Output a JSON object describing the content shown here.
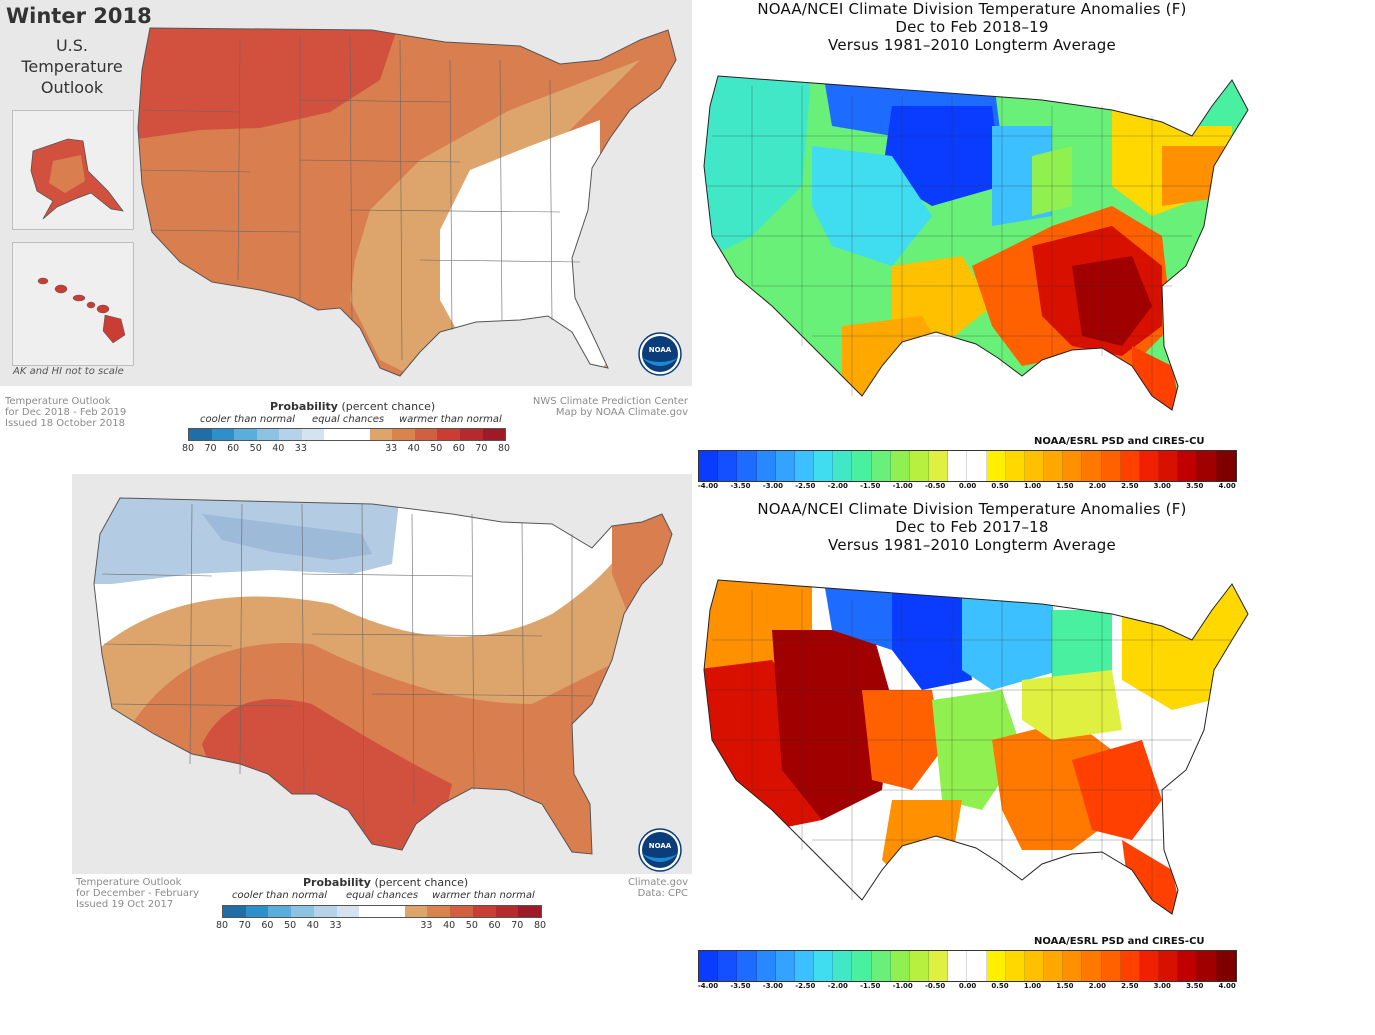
{
  "outlook_2018": {
    "title_line1": "Winter 2018",
    "title_line2": "U.S.",
    "title_line3": "Temperature",
    "title_line4": "Outlook",
    "inset_note": "AK and HI not to scale",
    "footer_left": [
      "Temperature Outlook",
      "for Dec 2018 - Feb 2019",
      "Issued 18 October 2018"
    ],
    "footer_right": [
      "NWS Climate Prediction Center",
      "Map by NOAA Climate.gov"
    ],
    "logo_text": "NOAA"
  },
  "outlook_2017": {
    "footer_left": [
      "Temperature Outlook",
      "for December - February",
      "Issued 19 Oct 2017"
    ],
    "footer_right": [
      "Climate.gov",
      "Data: CPC"
    ],
    "logo_text": "NOAA"
  },
  "probability_legend": {
    "title_bold": "Probability",
    "title_rest": "(percent chance)",
    "cooler": "cooler than normal",
    "equal": "equal chances",
    "warmer": "warmer than normal",
    "ticks": [
      "80",
      "70",
      "60",
      "50",
      "40",
      "33",
      "33",
      "40",
      "50",
      "60",
      "70",
      "80"
    ],
    "colors": [
      "#1f6fa6",
      "#2f8fc8",
      "#5aaedb",
      "#8cc3e3",
      "#b4d2ea",
      "#d5e3f0",
      "#ffffff",
      "#ffffff",
      "#dda56c",
      "#d9844f",
      "#d0603f",
      "#c93d35",
      "#b42a2e",
      "#9e1a26"
    ]
  },
  "anomaly_2018_19": {
    "title_line1": "NOAA/NCEI Climate Division Temperature Anomalies (F)",
    "title_line2": "Dec to Feb 2018–19",
    "title_line3": "Versus 1981–2010 Longterm Average",
    "credit": "NOAA/ESRL PSD and CIRES-CU"
  },
  "anomaly_2017_18": {
    "title_line1": "NOAA/NCEI Climate Division Temperature Anomalies (F)",
    "title_line2": "Dec to Feb 2017–18",
    "title_line3": "Versus 1981–2010 Longterm Average",
    "credit": "NOAA/ESRL PSD and CIRES-CU"
  },
  "anomaly_scale": {
    "ticks": [
      "-4.00",
      "-3.50",
      "-3.00",
      "-2.50",
      "-2.00",
      "-1.50",
      "-1.00",
      "-0.50",
      "0.00",
      "0.50",
      "1.00",
      "1.50",
      "2.00",
      "2.50",
      "3.00",
      "3.50",
      "4.00"
    ],
    "colors": [
      "#0a3cff",
      "#1450ff",
      "#1e6cff",
      "#2888ff",
      "#32a4ff",
      "#3cc0ff",
      "#40dcf0",
      "#40e8c8",
      "#48f0a0",
      "#68f078",
      "#90f050",
      "#b8f040",
      "#e0f040",
      "#ffffff",
      "#ffffff",
      "#fff000",
      "#ffd800",
      "#ffc000",
      "#ffa800",
      "#ff9000",
      "#ff7800",
      "#ff6000",
      "#ff4000",
      "#f02000",
      "#d81000",
      "#c00000",
      "#a00000",
      "#800000"
    ]
  },
  "map_colors": {
    "warm_high": "#d2513e",
    "warm_mid": "#d97e4e",
    "warm_low": "#dda56c",
    "cool_low": "#b4cce3",
    "cool_mid": "#9ebad9",
    "equal": "#ffffff",
    "land_outside": "#e3e3e3",
    "border": "#555555"
  }
}
